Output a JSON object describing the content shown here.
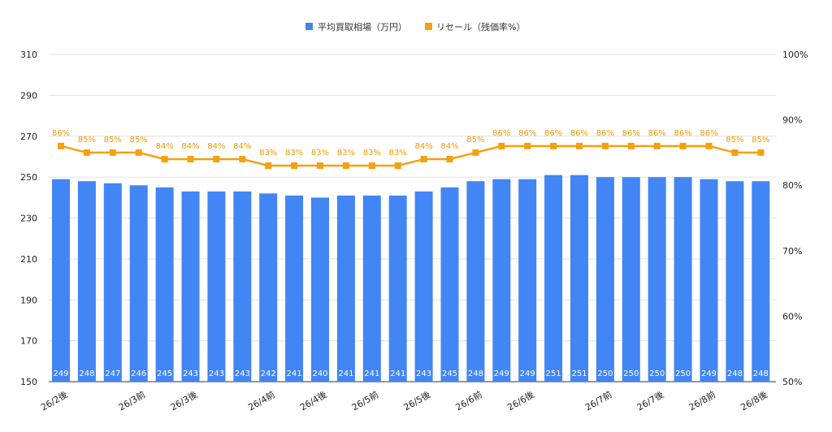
{
  "chart_data": {
    "type": "bar",
    "title": "",
    "legend": {
      "position": "top",
      "items": [
        {
          "label": "平均買取相場（万円）",
          "color": "#4285f4",
          "marker": "square"
        },
        {
          "label": "リセール（残価率%）",
          "color": "#f5a00e",
          "marker": "square"
        }
      ]
    },
    "x_tick_labels": [
      "26/2後",
      "26/3前",
      "26/3後",
      "26/4前",
      "26/4後",
      "26/5前",
      "26/5後",
      "26/6前",
      "26/6後",
      "26/7前",
      "26/7後",
      "26/8前",
      "26/8後"
    ],
    "x_tick_label_category_index": [
      0,
      3,
      5,
      8,
      10,
      12,
      14,
      16,
      18,
      21,
      23,
      25,
      27
    ],
    "series": [
      {
        "name": "平均買取相場（万円）",
        "type": "bar",
        "axis": "left",
        "color": "#4285f4",
        "values": [
          249,
          248,
          247,
          246,
          245,
          243,
          243,
          243,
          242,
          241,
          240,
          241,
          241,
          241,
          243,
          245,
          248,
          249,
          249,
          251,
          251,
          250,
          250,
          250,
          250,
          249,
          248,
          248
        ],
        "data_labels": [
          "249",
          "248",
          "247",
          "246",
          "245",
          "243",
          "243",
          "243",
          "242",
          "241",
          "240",
          "241",
          "241",
          "241",
          "243",
          "245",
          "248",
          "249",
          "249",
          "251",
          "251",
          "250",
          "250",
          "250",
          "250",
          "249",
          "248",
          "248"
        ]
      },
      {
        "name": "リセール（残価率%）",
        "type": "line",
        "axis": "right",
        "color": "#f5a00e",
        "values": [
          86,
          85,
          85,
          85,
          84,
          84,
          84,
          84,
          83,
          83,
          83,
          83,
          83,
          83,
          84,
          84,
          85,
          86,
          86,
          86,
          86,
          86,
          86,
          86,
          86,
          86,
          85,
          85
        ],
        "data_labels": [
          "86%",
          "85%",
          "85%",
          "85%",
          "84%",
          "84%",
          "84%",
          "84%",
          "83%",
          "83%",
          "83%",
          "83%",
          "83%",
          "83%",
          "84%",
          "84%",
          "85%",
          "86%",
          "86%",
          "86%",
          "86%",
          "86%",
          "86%",
          "86%",
          "86%",
          "86%",
          "85%",
          "85%"
        ]
      }
    ],
    "y_left": {
      "min": 150,
      "max": 310,
      "ticks": [
        150,
        170,
        190,
        210,
        230,
        250,
        270,
        290,
        310
      ],
      "tick_labels": [
        "150",
        "170",
        "190",
        "210",
        "230",
        "250",
        "270",
        "290",
        "310"
      ]
    },
    "y_right": {
      "min": 50,
      "max": 100,
      "ticks": [
        50,
        60,
        70,
        80,
        90,
        100
      ],
      "tick_labels": [
        "50%",
        "60%",
        "70%",
        "80%",
        "90%",
        "100%"
      ]
    },
    "grid": true,
    "grid_color": "#e0e0e0"
  }
}
